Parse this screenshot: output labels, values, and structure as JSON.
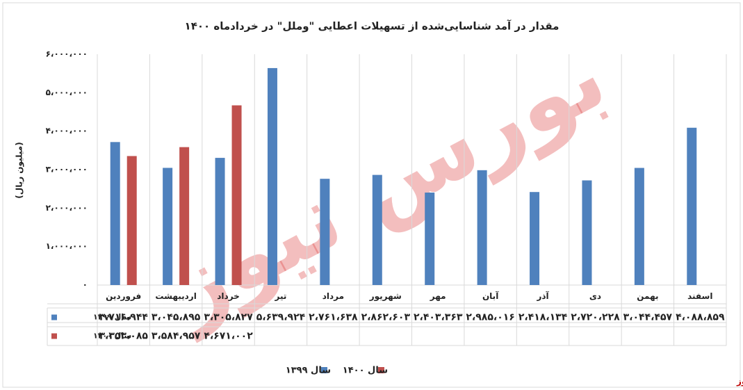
{
  "chart_data": {
    "type": "bar",
    "title": "مقدار در آمد شناسایی‌شده از تسهیلات اعطایی \"وملل\" در خردادماه ۱۴۰۰",
    "y_label": "(میلیون ریال)",
    "watermark": "بورس نیوز",
    "source": "بورس نیوز",
    "categories": [
      "فروردین",
      "اردیبهشت",
      "خرداد",
      "تیر",
      "مرداد",
      "شهریور",
      "مهر",
      "آبان",
      "آذر",
      "دی",
      "بهمن",
      "اسفند"
    ],
    "series": [
      {
        "name": "سال ۱۳۹۹",
        "color": "#4f81bd",
        "values": [
          3716944,
          3045895,
          3305827,
          5639924,
          2761638,
          2862603,
          2403363,
          2985016,
          2418134,
          2720228,
          3044457,
          4088859
        ],
        "value_labels": [
          "۳،۷۱۶،۹۴۴",
          "۳،۰۴۵،۸۹۵",
          "۳،۳۰۵،۸۲۷",
          "۵،۶۳۹،۹۲۴",
          "۲،۷۶۱،۶۳۸",
          "۲،۸۶۲،۶۰۳",
          "۲،۴۰۳،۳۶۳",
          "۲،۹۸۵،۰۱۶",
          "۲،۴۱۸،۱۳۴",
          "۲،۷۲۰،۲۲۸",
          "۳،۰۴۴،۴۵۷",
          "۴،۰۸۸،۸۵۹"
        ]
      },
      {
        "name": "سال ۱۴۰۰",
        "color": "#c0504d",
        "values": [
          3353085,
          3584957,
          4671002,
          null,
          null,
          null,
          null,
          null,
          null,
          null,
          null,
          null
        ],
        "value_labels": [
          "۳،۳۵۳،۰۸۵",
          "۳،۵۸۴،۹۵۷",
          "۴،۶۷۱،۰۰۲",
          null,
          null,
          null,
          null,
          null,
          null,
          null,
          null,
          null
        ]
      }
    ],
    "ylim": [
      0,
      6000000
    ],
    "yticks": [
      {
        "value": 0,
        "label": "۰"
      },
      {
        "value": 1000000,
        "label": "۱،۰۰۰،۰۰۰"
      },
      {
        "value": 2000000,
        "label": "۲،۰۰۰،۰۰۰"
      },
      {
        "value": 3000000,
        "label": "۳،۰۰۰،۰۰۰"
      },
      {
        "value": 4000000,
        "label": "۴،۰۰۰،۰۰۰"
      },
      {
        "value": 5000000,
        "label": "۵،۰۰۰،۰۰۰"
      },
      {
        "value": 6000000,
        "label": "۶،۰۰۰،۰۰۰"
      }
    ],
    "grid": false
  }
}
